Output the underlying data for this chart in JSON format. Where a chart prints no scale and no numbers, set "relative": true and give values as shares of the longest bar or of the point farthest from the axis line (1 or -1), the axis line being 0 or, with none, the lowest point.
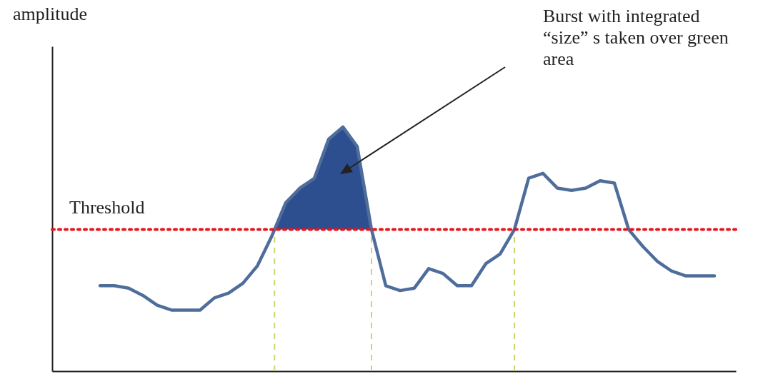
{
  "chart_data": {
    "type": "line",
    "relative": true,
    "grid": false,
    "line_style": "solid",
    "categories": [
      null,
      null,
      null,
      null,
      null,
      null,
      null,
      null,
      null,
      null,
      null,
      null,
      null,
      null,
      null,
      null,
      null,
      null,
      null,
      null,
      null,
      null,
      null,
      null,
      null,
      null,
      null,
      null,
      null,
      null,
      null,
      null,
      null,
      null,
      null,
      null,
      null,
      null,
      null,
      null,
      null,
      null,
      null,
      null
    ],
    "series": [
      {
        "color": "#4f6d9b",
        "values": [
          0.35,
          0.35,
          0.34,
          0.31,
          0.27,
          0.25,
          0.25,
          0.25,
          0.3,
          0.32,
          0.36,
          0.43,
          0.55,
          0.69,
          0.75,
          0.79,
          0.95,
          1,
          0.92,
          0.58,
          0.35,
          0.33,
          0.34,
          0.42,
          0.4,
          0.35,
          0.35,
          0.44,
          0.48,
          0.58,
          0.79,
          0.81,
          0.75,
          0.74,
          0.75,
          0.78,
          0.77,
          0.58,
          0.51,
          0.45,
          0.41,
          0.39,
          0.39,
          0.39
        ]
      }
    ],
    "ref_lines": [
      {
        "axis": "y",
        "value": 0.58,
        "label": "Threshold",
        "color": "#e8141c",
        "line_style": "dotted"
      }
    ],
    "annotations": [
      "amplitude",
      "Burst with integrated “size” s taken over green area"
    ]
  }
}
